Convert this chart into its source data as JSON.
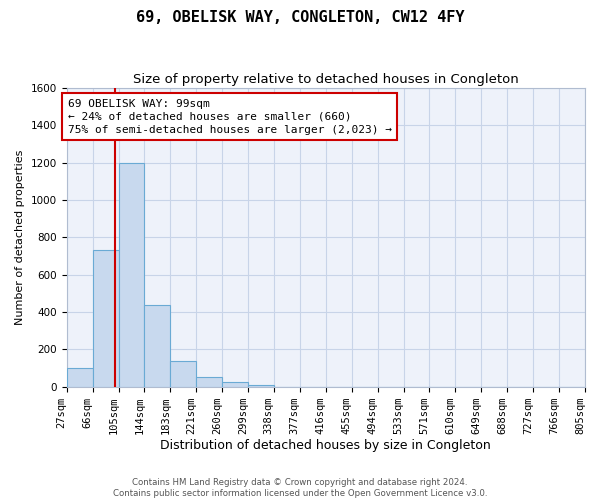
{
  "title1": "69, OBELISK WAY, CONGLETON, CW12 4FY",
  "title2": "Size of property relative to detached houses in Congleton",
  "xlabel": "Distribution of detached houses by size in Congleton",
  "ylabel": "Number of detached properties",
  "footer1": "Contains HM Land Registry data © Crown copyright and database right 2024.",
  "footer2": "Contains public sector information licensed under the Open Government Licence v3.0.",
  "bin_edges": [
    27,
    66,
    105,
    144,
    183,
    221,
    260,
    299,
    338,
    377,
    416,
    455,
    494,
    533,
    571,
    610,
    649,
    688,
    727,
    766,
    805
  ],
  "bar_heights": [
    100,
    730,
    1200,
    440,
    140,
    50,
    25,
    10,
    0,
    0,
    0,
    0,
    0,
    0,
    0,
    0,
    0,
    0,
    0,
    0
  ],
  "bar_color": "#c8d9ee",
  "bar_edge_color": "#6aaad4",
  "property_size": 99,
  "vline_color": "#cc0000",
  "annotation_line1": "69 OBELISK WAY: 99sqm",
  "annotation_line2": "← 24% of detached houses are smaller (660)",
  "annotation_line3": "75% of semi-detached houses are larger (2,023) →",
  "annotation_box_color": "#ffffff",
  "annotation_box_edge": "#cc0000",
  "ylim": [
    0,
    1600
  ],
  "yticks": [
    0,
    200,
    400,
    600,
    800,
    1000,
    1200,
    1400,
    1600
  ],
  "background_color": "#ffffff",
  "grid_color": "#c8d4e8",
  "plot_bg_color": "#eef2fa",
  "title1_fontsize": 11,
  "title2_fontsize": 9.5,
  "xlabel_fontsize": 9,
  "ylabel_fontsize": 8,
  "tick_fontsize": 7.5,
  "annotation_fontsize": 8
}
